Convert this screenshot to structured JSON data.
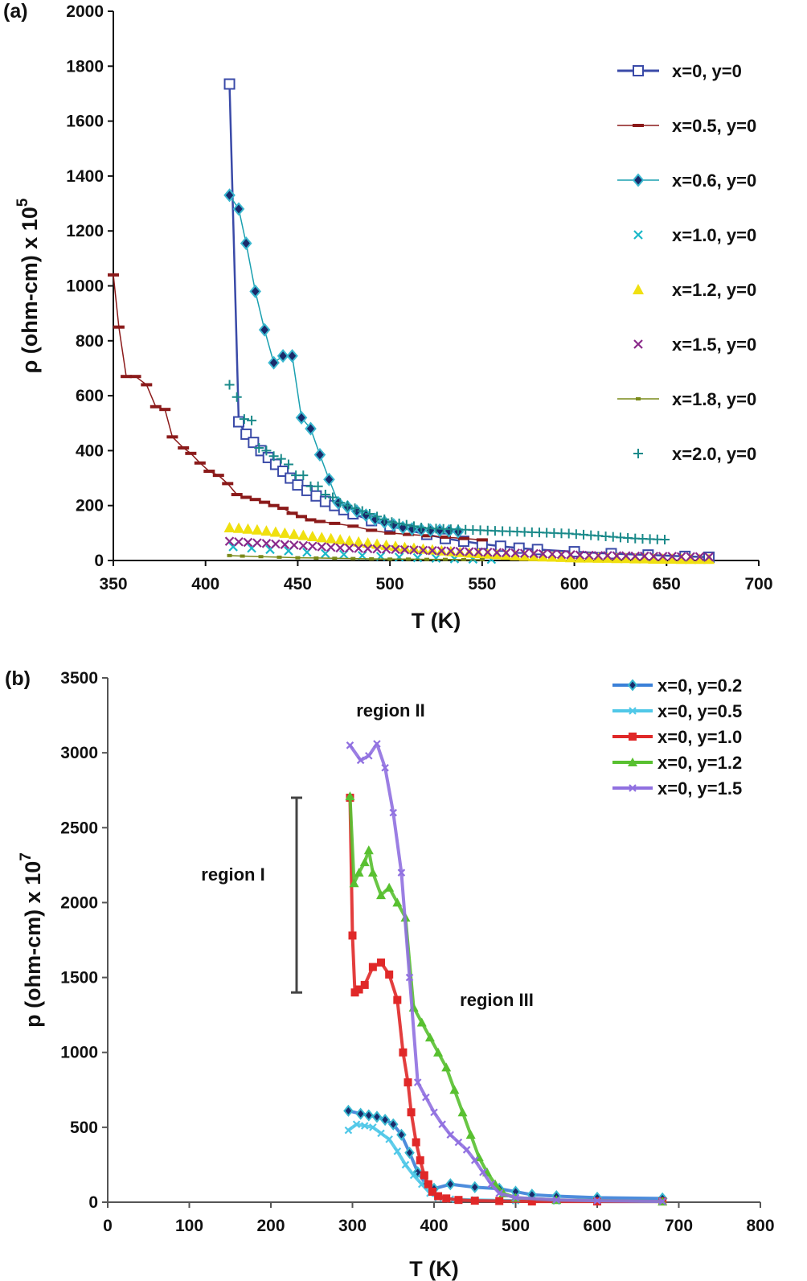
{
  "chart_data": [
    {
      "panel_label": "(a)",
      "type": "line",
      "xlabel": "T (K)",
      "ylabel": "ρ (ohm-cm) x 10",
      "ylabel_exponent": "5",
      "xlim": [
        350,
        700
      ],
      "ylim": [
        0,
        2000
      ],
      "xticks": [
        350,
        400,
        450,
        500,
        550,
        600,
        650,
        700
      ],
      "yticks": [
        0,
        200,
        400,
        600,
        800,
        1000,
        1200,
        1400,
        1600,
        1800,
        2000
      ],
      "legend_position": "top-right",
      "series": [
        {
          "name": "x=0, y=0",
          "color": "#3a4aa8",
          "marker": "open-square",
          "line": true,
          "x": [
            413,
            418,
            422,
            426,
            430,
            434,
            438,
            442,
            446,
            450,
            455,
            460,
            465,
            470,
            475,
            480,
            490,
            500,
            510,
            520,
            530,
            540,
            550,
            560,
            570,
            580,
            600,
            620,
            640,
            660,
            673
          ],
          "y": [
            1735,
            505,
            460,
            430,
            400,
            375,
            350,
            325,
            300,
            275,
            255,
            235,
            215,
            200,
            185,
            170,
            145,
            125,
            110,
            95,
            80,
            70,
            60,
            52,
            45,
            40,
            32,
            25,
            20,
            15,
            12
          ]
        },
        {
          "name": "x=0.5, y=0",
          "color": "#8b1a1a",
          "marker": "dash",
          "line": true,
          "x": [
            350,
            353,
            357,
            362,
            368,
            373,
            378,
            382,
            388,
            392,
            397,
            402,
            407,
            412,
            417,
            422,
            427,
            432,
            437,
            442,
            447,
            452,
            457,
            462,
            470,
            480,
            490,
            500,
            510,
            520,
            530,
            540,
            550
          ],
          "y": [
            1040,
            850,
            670,
            670,
            640,
            560,
            550,
            450,
            410,
            390,
            355,
            325,
            310,
            280,
            240,
            230,
            222,
            212,
            200,
            190,
            172,
            160,
            148,
            142,
            135,
            125,
            110,
            100,
            95,
            90,
            85,
            80,
            75
          ]
        },
        {
          "name": "x=0.6, y=0",
          "color": "#1aa0b0",
          "marker": "diamond",
          "line": true,
          "x": [
            413,
            418,
            422,
            427,
            432,
            437,
            442,
            447,
            452,
            457,
            462,
            467,
            472,
            477,
            482,
            487,
            492,
            497,
            502,
            507,
            512,
            517,
            522,
            527,
            532,
            537
          ],
          "y": [
            1330,
            1280,
            1155,
            980,
            840,
            720,
            745,
            745,
            520,
            480,
            385,
            295,
            210,
            195,
            180,
            165,
            150,
            140,
            130,
            120,
            115,
            112,
            110,
            110,
            108,
            105
          ]
        },
        {
          "name": "x=1.0, y=0",
          "color": "#1ab8c8",
          "marker": "x",
          "line": false,
          "x": [
            415,
            425,
            435,
            445,
            455,
            465,
            475,
            485,
            495,
            505,
            515,
            525,
            535,
            545,
            555
          ],
          "y": [
            50,
            45,
            40,
            35,
            30,
            25,
            22,
            18,
            15,
            12,
            10,
            8,
            6,
            5,
            4
          ]
        },
        {
          "name": "x=1.2, y=0",
          "color": "#f0e010",
          "marker": "triangle",
          "line": false,
          "x": [
            413,
            418,
            423,
            428,
            433,
            438,
            443,
            448,
            453,
            458,
            463,
            468,
            473,
            478,
            483,
            488,
            493,
            498,
            503,
            508,
            513,
            518,
            523,
            528,
            533,
            538,
            543,
            548,
            553,
            558,
            563,
            568,
            573,
            578,
            583,
            588,
            593,
            598,
            603,
            608,
            613,
            618,
            623,
            628,
            633,
            638,
            643,
            648,
            653,
            658,
            663,
            668,
            673
          ],
          "y": [
            120,
            118,
            115,
            112,
            108,
            104,
            100,
            96,
            92,
            88,
            84,
            80,
            76,
            72,
            68,
            64,
            60,
            56,
            52,
            48,
            45,
            42,
            39,
            36,
            33,
            30,
            28,
            26,
            24,
            22,
            20,
            18,
            16,
            15,
            14,
            13,
            12,
            11,
            10,
            10,
            9,
            9,
            8,
            8,
            7,
            7,
            6,
            6,
            6,
            5,
            5,
            5,
            5
          ]
        },
        {
          "name": "x=1.5, y=0",
          "color": "#8a2a8a",
          "marker": "x",
          "line": false,
          "x": [
            413,
            418,
            423,
            428,
            433,
            438,
            443,
            448,
            453,
            458,
            463,
            468,
            473,
            478,
            483,
            488,
            493,
            498,
            503,
            508,
            513,
            518,
            523,
            528,
            533,
            538,
            543,
            548,
            553,
            558,
            563,
            568,
            573,
            578,
            583,
            588,
            593,
            598,
            603,
            608,
            613,
            618,
            623,
            628,
            633,
            638,
            643,
            648,
            653,
            658,
            663,
            668,
            673
          ],
          "y": [
            70,
            68,
            66,
            64,
            62,
            60,
            58,
            56,
            54,
            52,
            50,
            48,
            46,
            45,
            44,
            43,
            42,
            41,
            40,
            39,
            38,
            37,
            36,
            35,
            34,
            33,
            32,
            31,
            30,
            29,
            28,
            27,
            26,
            25,
            24,
            23,
            22,
            21,
            20,
            19,
            18,
            18,
            17,
            17,
            16,
            16,
            15,
            15,
            15,
            14,
            14,
            14,
            13
          ]
        },
        {
          "name": "x=1.8, y=0",
          "color": "#7a8a1a",
          "marker": "small-square",
          "line": true,
          "x": [
            413,
            420,
            430,
            440,
            450,
            460,
            470,
            480,
            490,
            500,
            510,
            520,
            530,
            540,
            550
          ],
          "y": [
            18,
            16,
            14,
            12,
            10,
            9,
            8,
            7,
            6,
            5,
            5,
            4,
            4,
            3,
            3
          ]
        },
        {
          "name": "x=2.0, y=0",
          "color": "#1a8a8a",
          "marker": "plus",
          "line": false,
          "x": [
            413,
            417,
            421,
            425,
            429,
            433,
            437,
            441,
            445,
            449,
            453,
            457,
            461,
            465,
            469,
            473,
            477,
            481,
            485,
            489,
            493,
            497,
            501,
            505,
            509,
            513,
            517,
            521,
            525,
            529,
            533,
            537,
            541,
            545,
            549,
            553,
            557,
            561,
            565,
            569,
            573,
            577,
            581,
            585,
            589,
            593,
            597,
            601,
            605,
            609,
            613,
            617,
            621,
            625,
            629,
            633,
            637,
            641,
            645,
            649
          ],
          "y": [
            640,
            595,
            515,
            510,
            410,
            400,
            380,
            370,
            350,
            310,
            310,
            270,
            270,
            240,
            230,
            210,
            200,
            190,
            180,
            170,
            160,
            150,
            140,
            135,
            130,
            125,
            120,
            118,
            116,
            115,
            114,
            113,
            112,
            111,
            110,
            109,
            108,
            107,
            106,
            105,
            104,
            103,
            102,
            101,
            100,
            99,
            98,
            96,
            94,
            92,
            90,
            88,
            86,
            84,
            82,
            80,
            79,
            78,
            77,
            76
          ]
        }
      ]
    },
    {
      "panel_label": "(b)",
      "type": "line",
      "xlabel": "T (K)",
      "ylabel": "p (ohm-cm) x 10",
      "ylabel_exponent": "7",
      "xlim": [
        0,
        800
      ],
      "ylim": [
        0,
        3500
      ],
      "xticks": [
        0,
        100,
        200,
        300,
        400,
        500,
        600,
        700,
        800
      ],
      "yticks": [
        0,
        500,
        1000,
        1500,
        2000,
        2500,
        3000,
        3500
      ],
      "legend_position": "top-right",
      "annotations": [
        "region I",
        "region II",
        "region III"
      ],
      "region_bar": [
        1400,
        2700
      ],
      "series": [
        {
          "name": "x=0, y=0.2",
          "color": "#3a80d8",
          "marker": "diamond",
          "x": [
            295,
            310,
            320,
            330,
            340,
            350,
            360,
            370,
            380,
            390,
            400,
            420,
            450,
            480,
            500,
            520,
            550,
            600,
            680
          ],
          "y": [
            610,
            590,
            580,
            570,
            550,
            520,
            450,
            330,
            200,
            120,
            90,
            120,
            100,
            90,
            70,
            50,
            40,
            30,
            25
          ]
        },
        {
          "name": "x=0, y=0.5",
          "color": "#50c8e8",
          "marker": "x",
          "x": [
            295,
            305,
            315,
            325,
            335,
            345,
            355,
            365,
            375,
            385,
            395,
            405,
            420,
            450,
            500,
            550,
            600,
            680
          ],
          "y": [
            480,
            520,
            510,
            500,
            460,
            420,
            340,
            250,
            180,
            120,
            60,
            30,
            20,
            15,
            10,
            8,
            5,
            5
          ]
        },
        {
          "name": "x=0, y=1.0",
          "color": "#e02828",
          "marker": "square",
          "x": [
            297,
            300,
            303,
            308,
            315,
            325,
            335,
            345,
            355,
            362,
            368,
            372,
            378,
            383,
            388,
            393,
            398,
            405,
            415,
            430,
            450,
            480,
            520,
            600,
            680
          ],
          "y": [
            2700,
            1780,
            1400,
            1420,
            1450,
            1570,
            1600,
            1520,
            1350,
            1000,
            800,
            600,
            400,
            280,
            180,
            120,
            70,
            40,
            25,
            15,
            10,
            8,
            5,
            5,
            5
          ]
        },
        {
          "name": "x=0, y=1.2",
          "color": "#58c030",
          "marker": "triangle",
          "x": [
            297,
            302,
            308,
            315,
            320,
            325,
            335,
            345,
            355,
            365,
            375,
            385,
            395,
            405,
            415,
            425,
            435,
            445,
            455,
            465,
            475,
            485,
            500,
            550,
            680
          ],
          "y": [
            2710,
            2130,
            2200,
            2270,
            2350,
            2200,
            2050,
            2100,
            2000,
            1900,
            1300,
            1200,
            1100,
            1000,
            900,
            750,
            600,
            450,
            300,
            200,
            120,
            60,
            30,
            15,
            5
          ]
        },
        {
          "name": "x=0, y=1.5",
          "color": "#9070e0",
          "marker": "x",
          "x": [
            297,
            310,
            320,
            330,
            340,
            350,
            360,
            370,
            380,
            390,
            400,
            410,
            420,
            430,
            440,
            450,
            460,
            470,
            480,
            500,
            550,
            600,
            680
          ],
          "y": [
            3050,
            2950,
            2980,
            3060,
            2900,
            2600,
            2200,
            1500,
            800,
            700,
            600,
            520,
            450,
            400,
            350,
            280,
            200,
            120,
            60,
            30,
            15,
            10,
            5
          ]
        }
      ]
    }
  ]
}
